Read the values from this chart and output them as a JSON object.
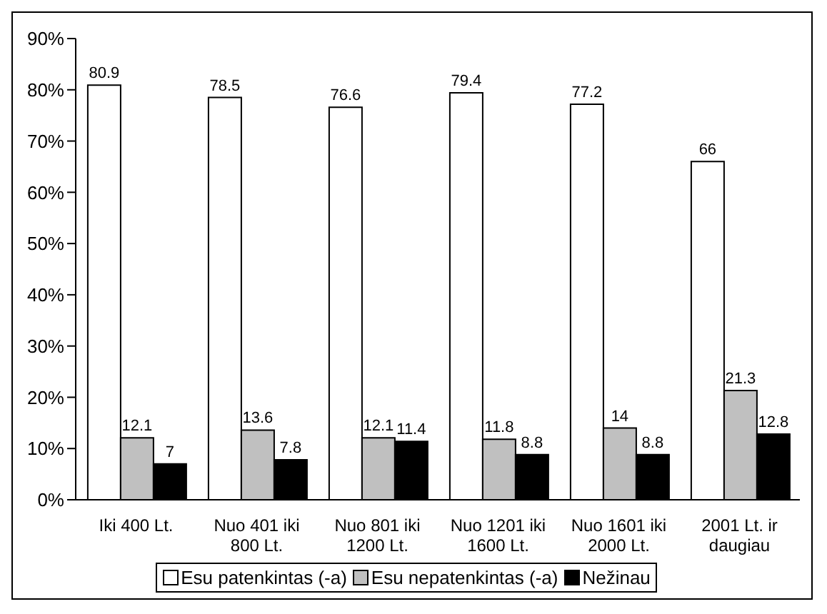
{
  "chart_data": {
    "type": "bar",
    "categories": [
      "Iki 400 Lt.",
      "Nuo 401 iki 800 Lt.",
      "Nuo 801 iki 1200 Lt.",
      "Nuo 1201 iki 1600 Lt.",
      "Nuo 1601 iki 2000 Lt.",
      "2001 Lt. ir daugiau"
    ],
    "series": [
      {
        "name": "Esu patenkintas (-a)",
        "color": "#ffffff",
        "values": [
          80.9,
          78.5,
          76.6,
          79.4,
          77.2,
          66
        ]
      },
      {
        "name": "Esu nepatenkintas (-a)",
        "color": "#c0c0c0",
        "values": [
          12.1,
          13.6,
          12.1,
          11.8,
          14,
          21.3
        ]
      },
      {
        "name": "Nežinau",
        "color": "#000000",
        "values": [
          7,
          7.8,
          11.4,
          8.8,
          8.8,
          12.8
        ]
      }
    ],
    "ylim": [
      0,
      90
    ],
    "yticks": [
      {
        "value": 0,
        "label": "0%"
      },
      {
        "value": 10,
        "label": "10%"
      },
      {
        "value": 20,
        "label": "20%"
      },
      {
        "value": 30,
        "label": "30%"
      },
      {
        "value": 40,
        "label": "40%"
      },
      {
        "value": 50,
        "label": "50%"
      },
      {
        "value": 60,
        "label": "60%"
      },
      {
        "value": 70,
        "label": "70%"
      },
      {
        "value": 80,
        "label": "80%"
      },
      {
        "value": 90,
        "label": "90%"
      }
    ],
    "grid": false,
    "legend": "bottom",
    "data_labels": true
  }
}
